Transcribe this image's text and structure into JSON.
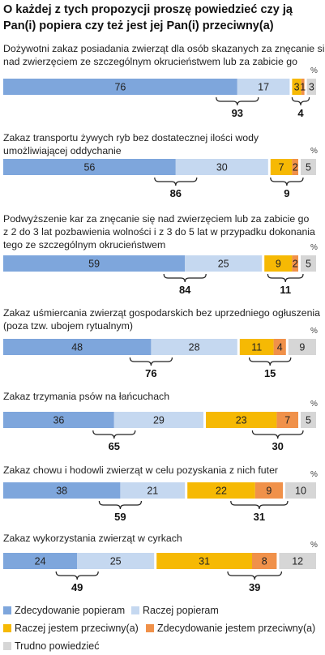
{
  "title": "O każdej z tych propozycji proszę powiedzieć czy ją Pan(i) popiera czy też jest jej Pan(i) przeciwny(a)",
  "percent_symbol": "%",
  "colors": {
    "strong_support": "#7ea6dc",
    "support": "#c5d8f0",
    "against": "#f6b904",
    "strong_against": "#f0914a",
    "dont_know": "#d6d6d6"
  },
  "chart_data": {
    "type": "bar",
    "orientation": "horizontal",
    "stacked": true,
    "unit": "%",
    "series": [
      {
        "name": "Zdecydowanie popieram",
        "color": "#7ea6dc"
      },
      {
        "name": "Raczej popieram",
        "color": "#c5d8f0"
      },
      {
        "name": "Raczej jestem przeciwny(a)",
        "color": "#f6b904"
      },
      {
        "name": "Zdecydowanie jestem przeciwny(a)",
        "color": "#f0914a"
      },
      {
        "name": "Trudno powiedzieć",
        "color": "#d6d6d6"
      }
    ],
    "items": [
      {
        "label": [
          "Dożywotni zakaz posiadania zwierząt dla osób skazanych za znęcanie się",
          "nad zwierzęciem ze szczególnym okrucieństwem lub za zabicie go"
        ],
        "values": [
          76,
          17,
          3,
          1,
          3
        ],
        "support_total": 93,
        "against_total": 4
      },
      {
        "label": [
          "Zakaz transportu żywych ryb bez dostatecznej ilości wody",
          "umożliwiającej oddychanie"
        ],
        "values": [
          56,
          30,
          7,
          2,
          5
        ],
        "support_total": 86,
        "against_total": 9
      },
      {
        "label": [
          "Podwyższenie kar za znęcanie się nad zwierzęciem lub za zabicie go",
          "z 2 do 3 lat pozbawienia wolności i z 3 do 5 lat w przypadku dokonania",
          "tego ze szczególnym okrucieństwem"
        ],
        "values": [
          59,
          25,
          9,
          2,
          5
        ],
        "support_total": 84,
        "against_total": 11
      },
      {
        "label": [
          "Zakaz uśmiercania zwierząt gospodarskich bez uprzedniego ogłuszenia",
          "(poza tzw. ubojem rytualnym)"
        ],
        "values": [
          48,
          28,
          11,
          4,
          9
        ],
        "support_total": 76,
        "against_total": 15
      },
      {
        "label": [
          "Zakaz trzymania psów na łańcuchach"
        ],
        "values": [
          36,
          29,
          23,
          7,
          5
        ],
        "support_total": 65,
        "against_total": 30
      },
      {
        "label": [
          "Zakaz chowu i hodowli zwierząt w celu pozyskania z nich futer"
        ],
        "values": [
          38,
          21,
          22,
          9,
          10
        ],
        "support_total": 59,
        "against_total": 31
      },
      {
        "label": [
          "Zakaz wykorzystania zwierząt w cyrkach"
        ],
        "values": [
          24,
          25,
          31,
          8,
          12
        ],
        "support_total": 49,
        "against_total": 39
      }
    ]
  }
}
